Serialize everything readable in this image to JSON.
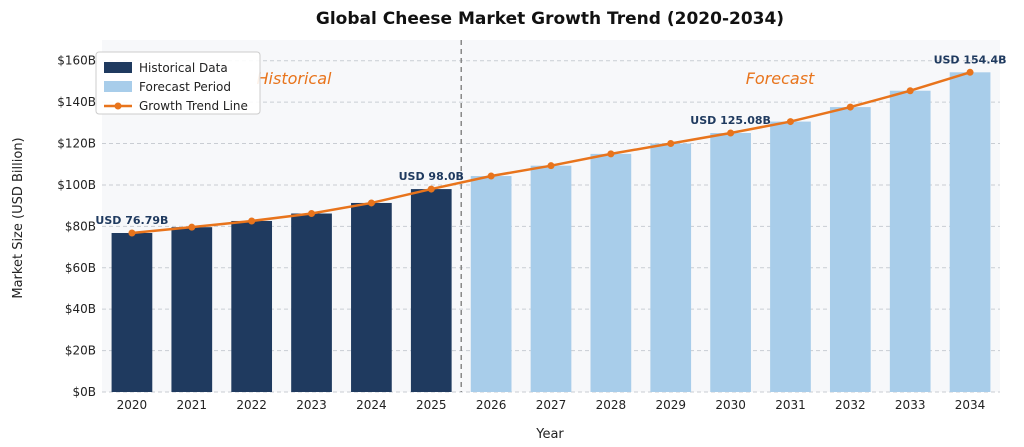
{
  "chart_data": {
    "type": "bar",
    "title": "Global Cheese Market Growth Trend (2020-2034)",
    "xlabel": "Year",
    "ylabel": "Market Size (USD Billion)",
    "ylim": [
      0,
      170
    ],
    "yticks": [
      0,
      20,
      40,
      60,
      80,
      100,
      120,
      140,
      160
    ],
    "ytick_labels": [
      "$0B",
      "$20B",
      "$40B",
      "$60B",
      "$80B",
      "$100B",
      "$120B",
      "$140B",
      "$160B"
    ],
    "categories": [
      "2020",
      "2021",
      "2022",
      "2023",
      "2024",
      "2025",
      "2026",
      "2027",
      "2028",
      "2029",
      "2030",
      "2031",
      "2032",
      "2033",
      "2034"
    ],
    "series": [
      {
        "name": "Historical Data",
        "type": "bar",
        "color": "#1f3a5f",
        "values": [
          76.79,
          79.6,
          82.6,
          86.2,
          91.3,
          98.0,
          null,
          null,
          null,
          null,
          null,
          null,
          null,
          null,
          null
        ]
      },
      {
        "name": "Forecast Period",
        "type": "bar",
        "color": "#a8cdea",
        "values": [
          null,
          null,
          null,
          null,
          null,
          null,
          104.3,
          109.3,
          115.0,
          120.0,
          125.08,
          130.6,
          137.6,
          145.5,
          154.4
        ]
      },
      {
        "name": "Growth Trend Line",
        "type": "line",
        "color": "#e8741c",
        "values": [
          76.79,
          79.6,
          82.6,
          86.2,
          91.3,
          98.0,
          104.3,
          109.3,
          115.0,
          120.0,
          125.08,
          130.6,
          137.6,
          145.5,
          154.4
        ]
      }
    ],
    "data_labels": [
      {
        "category": "2020",
        "text": "USD 76.79B"
      },
      {
        "category": "2025",
        "text": "USD 98.0B"
      },
      {
        "category": "2030",
        "text": "USD 125.08B"
      },
      {
        "category": "2034",
        "text": "USD 154.4B"
      }
    ],
    "annotations": {
      "historical": "Historical",
      "forecast": "Forecast"
    },
    "divider_between": [
      "2025",
      "2026"
    ],
    "grid": "horizontal dashed",
    "legend_position": "top-left",
    "colors": {
      "historical": "#1f3a5f",
      "forecast": "#a8cdea",
      "trend": "#e8741c",
      "data_label": "#1f3a5f",
      "annotation": "#e8741c"
    }
  }
}
